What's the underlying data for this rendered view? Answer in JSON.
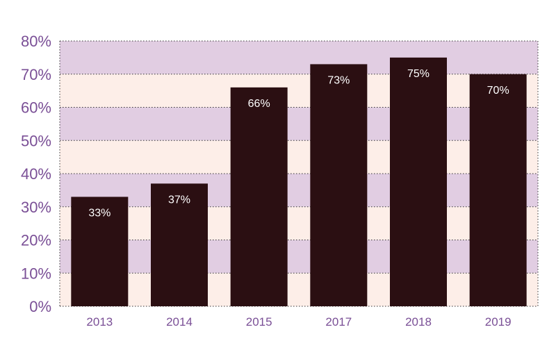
{
  "chart_data": {
    "type": "bar",
    "title": "",
    "xlabel": "",
    "ylabel": "",
    "categories": [
      "2013",
      "2014",
      "2015",
      "2017",
      "2018",
      "2019"
    ],
    "values": [
      33,
      37,
      66,
      73,
      75,
      70
    ],
    "data_labels": [
      "33%",
      "37%",
      "66%",
      "73%",
      "75%",
      "70%"
    ],
    "ylim": [
      0,
      80
    ],
    "y_ticks": [
      0,
      10,
      20,
      30,
      40,
      50,
      60,
      70,
      80
    ],
    "y_tick_labels": [
      "0%",
      "10%",
      "20%",
      "30%",
      "40%",
      "50%",
      "60%",
      "70%",
      "80%"
    ],
    "grid": true,
    "legend": "none",
    "colors": {
      "bar": "#2b0f12",
      "band_light": "#fdeee8",
      "band_dark": "#e1cde2",
      "tick_text": "#7a4f96",
      "label_text": "#ffffff",
      "gridline": "#333333"
    }
  }
}
